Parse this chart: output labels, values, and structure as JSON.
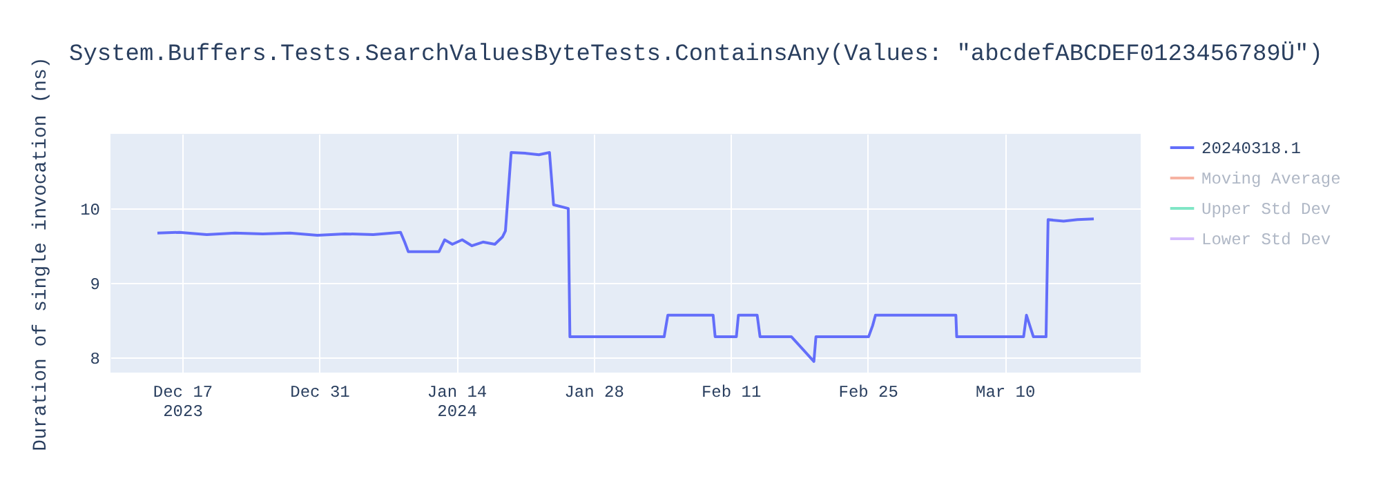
{
  "chart_data": {
    "type": "line",
    "title": "System.Buffers.Tests.SearchValuesByteTests.ContainsAny(Values: \"abcdefABCDEF0123456789Ü\")",
    "ylabel": "Duration of single invocation (ns)",
    "x": [
      "2023-12-14T11:00",
      "2023-12-16T17:00",
      "2023-12-19T12:00",
      "2023-12-22T09:00",
      "2023-12-25T05:00",
      "2023-12-28T00:00",
      "2023-12-30T19:00",
      "2024-01-02T14:00",
      "2024-01-05T12:00",
      "2024-01-08T07:00",
      "2024-01-08T17:00",
      "2024-01-09T02:00",
      "2024-01-12T05:00",
      "2024-01-12T19:00",
      "2024-01-13T14:00",
      "2024-01-14T14:00",
      "2024-01-15T14:00",
      "2024-01-16T17:00",
      "2024-01-17T22:00",
      "2024-01-18T17:00",
      "2024-01-19T00:00",
      "2024-01-19T14:00",
      "2024-01-21T00:00",
      "2024-01-22T10:00",
      "2024-01-23T12:00",
      "2024-01-23T22:00",
      "2024-01-25T10:00",
      "2024-01-25T14:00",
      "2024-02-04T05:00",
      "2024-02-04T14:00",
      "2024-02-09T05:00",
      "2024-02-09T10:00",
      "2024-02-11T14:00",
      "2024-02-11T19:00",
      "2024-02-13T17:00",
      "2024-02-14T00:00",
      "2024-02-17T05:00",
      "2024-02-19T12:00",
      "2024-02-19T17:00",
      "2024-02-25T02:00",
      "2024-02-25T12:00",
      "2024-02-25T19:00",
      "2024-03-05T00:00",
      "2024-03-05T02:00",
      "2024-03-11T22:00",
      "2024-03-12T05:00",
      "2024-03-12T22:00",
      "2024-03-14T05:00",
      "2024-03-14T10:00",
      "2024-03-16T00:00",
      "2024-03-17T10:00",
      "2024-03-19T02:00"
    ],
    "series": [
      {
        "name": "20240318.1",
        "color": "#636efa",
        "values": [
          9.67,
          9.68,
          9.65,
          9.67,
          9.66,
          9.67,
          9.64,
          9.66,
          9.65,
          9.68,
          9.55,
          9.42,
          9.42,
          9.58,
          9.52,
          9.58,
          9.5,
          9.55,
          9.52,
          9.62,
          9.7,
          10.75,
          10.74,
          10.72,
          10.75,
          10.05,
          10.0,
          8.28,
          8.28,
          8.57,
          8.57,
          8.28,
          8.28,
          8.57,
          8.57,
          8.28,
          8.28,
          7.95,
          8.28,
          8.28,
          8.43,
          8.57,
          8.57,
          8.28,
          8.28,
          8.57,
          8.28,
          8.28,
          9.85,
          9.83,
          9.85,
          9.86
        ]
      },
      {
        "name": "Moving Average",
        "color": "#f6b3a2",
        "values": [
          null,
          null,
          null,
          null,
          null,
          null,
          null,
          null,
          null,
          null,
          null,
          null,
          null,
          null,
          null,
          null,
          null,
          null,
          null,
          null,
          null,
          null,
          null,
          null,
          null,
          null,
          null,
          null,
          null,
          null,
          null,
          null,
          null,
          null,
          null,
          null,
          null,
          null,
          null,
          null,
          null,
          null,
          null,
          null,
          null,
          null,
          null,
          null,
          null,
          null,
          null,
          null
        ]
      },
      {
        "name": "Upper Std Dev",
        "color": "#80e6c6",
        "values": [
          null,
          null,
          null,
          null,
          null,
          null,
          null,
          null,
          null,
          null,
          null,
          null,
          null,
          null,
          null,
          null,
          null,
          null,
          null,
          null,
          null,
          null,
          null,
          null,
          null,
          null,
          null,
          null,
          null,
          null,
          null,
          null,
          null,
          null,
          null,
          null,
          null,
          null,
          null,
          null,
          null,
          null,
          null,
          null,
          null,
          null,
          null,
          null,
          null,
          null,
          null,
          null
        ]
      },
      {
        "name": "Lower Std Dev",
        "color": "#d5bcfd",
        "values": [
          null,
          null,
          null,
          null,
          null,
          null,
          null,
          null,
          null,
          null,
          null,
          null,
          null,
          null,
          null,
          null,
          null,
          null,
          null,
          null,
          null,
          null,
          null,
          null,
          null,
          null,
          null,
          null,
          null,
          null,
          null,
          null,
          null,
          null,
          null,
          null,
          null,
          null,
          null,
          null,
          null,
          null,
          null,
          null,
          null,
          null,
          null,
          null,
          null,
          null,
          null,
          null
        ]
      }
    ],
    "xlim": [
      "2023-12-09T16:00",
      "2024-03-23T21:00"
    ],
    "xticks": [
      {
        "value": "2023-12-17",
        "label": "Dec 17\n2023"
      },
      {
        "value": "2023-12-31",
        "label": "Dec 31"
      },
      {
        "value": "2024-01-14",
        "label": "Jan 14\n2024"
      },
      {
        "value": "2024-01-28",
        "label": "Jan 28"
      },
      {
        "value": "2024-02-11",
        "label": "Feb 11"
      },
      {
        "value": "2024-02-25",
        "label": "Feb 25"
      },
      {
        "value": "2024-03-10",
        "label": "Mar 10"
      }
    ],
    "ylim": [
      7.8,
      11.0
    ],
    "yticks": [
      8,
      9,
      10
    ],
    "grid": true,
    "legend": "top right",
    "marker": "none",
    "line_style": "solid"
  }
}
